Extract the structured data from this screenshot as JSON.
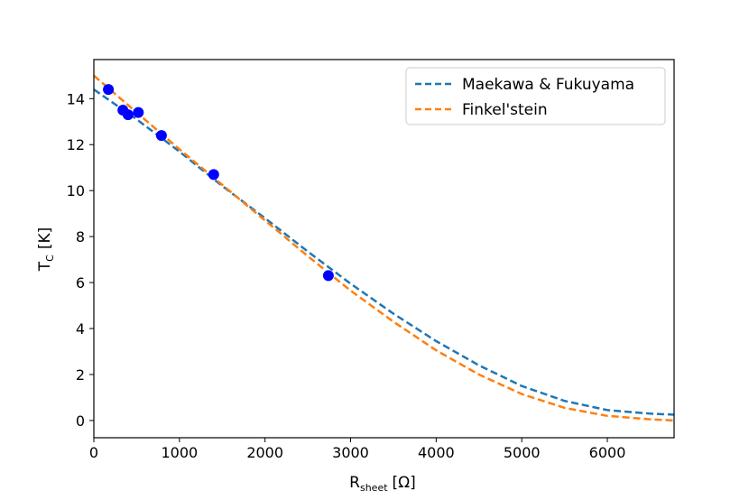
{
  "chart_data": {
    "type": "scatter",
    "xlabel": "R",
    "xlabel_sub": "sheet",
    "xlabel_unit": "[Ω]",
    "ylabel": "T",
    "ylabel_sub": "C",
    "ylabel_unit": "[K]",
    "xlim": [
      0,
      6780
    ],
    "ylim": [
      -0.75,
      15.7
    ],
    "xticks": [
      0,
      1000,
      2000,
      3000,
      4000,
      5000,
      6000
    ],
    "yticks": [
      0,
      2,
      4,
      6,
      8,
      10,
      12,
      14
    ],
    "grid": false,
    "legend_position": "top-right",
    "points": {
      "color": "#0000ff",
      "x": [
        170,
        340,
        400,
        520,
        790,
        1400,
        2740
      ],
      "y": [
        14.4,
        13.5,
        13.3,
        13.4,
        12.4,
        10.7,
        6.3
      ]
    },
    "series": [
      {
        "name": "Maekawa & Fukuyama",
        "color": "#1f77b4",
        "style": "dashed",
        "x": [
          0,
          500,
          1000,
          1500,
          2000,
          2500,
          3000,
          3500,
          4000,
          4500,
          5000,
          5500,
          6000,
          6500,
          6780
        ],
        "y": [
          14.4,
          13.1,
          11.7,
          10.2,
          8.8,
          7.35,
          5.95,
          4.65,
          3.45,
          2.4,
          1.5,
          0.85,
          0.45,
          0.3,
          0.25
        ]
      },
      {
        "name": "Finkel'stein",
        "color": "#ff7f0e",
        "style": "dashed",
        "x": [
          0,
          500,
          1000,
          1500,
          2000,
          2500,
          3000,
          3500,
          4000,
          4500,
          5000,
          5500,
          6000,
          6500,
          6780
        ],
        "y": [
          15.0,
          13.4,
          11.8,
          10.25,
          8.7,
          7.15,
          5.65,
          4.3,
          3.05,
          2.0,
          1.15,
          0.55,
          0.2,
          0.05,
          0.0
        ]
      }
    ]
  }
}
